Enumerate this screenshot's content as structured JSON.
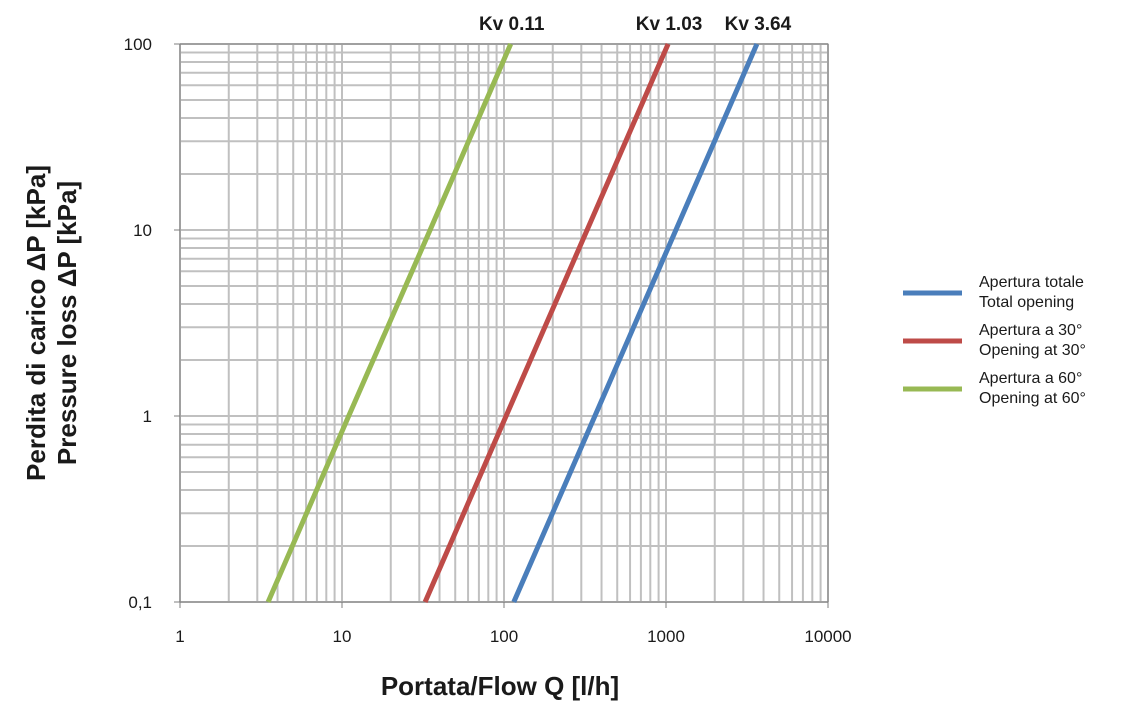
{
  "chart_data": {
    "type": "line",
    "x_scale": "log",
    "y_scale": "log",
    "xlim": [
      1,
      10000
    ],
    "ylim": [
      0.1,
      100
    ],
    "x_ticks": [
      "1",
      "10",
      "100",
      "1000",
      "10000"
    ],
    "y_ticks": [
      "0,1",
      "1",
      "10",
      "100"
    ],
    "xlabel": "Portata/Flow  Q [l/h]",
    "ylabel": [
      "Perdita di carico ΔP [kPa]",
      "Pressure loss ΔP [kPa]"
    ],
    "grid": true,
    "legend_position": "right",
    "series": [
      {
        "name": [
          "Apertura totale",
          "Total opening"
        ],
        "kv_label": "Kv 3.64",
        "kv": 3.64,
        "color": "#4a7ebb",
        "x": [
          115,
          364,
          1151,
          3640
        ],
        "y": [
          0.1,
          1,
          10,
          100
        ]
      },
      {
        "name": [
          "Apertura a 30°",
          "Opening at 30°"
        ],
        "kv_label": "Kv 1.03",
        "kv": 1.03,
        "color": "#be4b48",
        "x": [
          32.6,
          103,
          326,
          1030
        ],
        "y": [
          0.1,
          1,
          10,
          100
        ]
      },
      {
        "name": [
          "Apertura a 60°",
          "Opening at 60°"
        ],
        "kv_label": "Kv 0.11",
        "kv": 0.11,
        "color": "#98b954",
        "x": [
          3.5,
          11,
          35,
          110
        ],
        "y": [
          0.1,
          1,
          10,
          100
        ]
      }
    ]
  }
}
